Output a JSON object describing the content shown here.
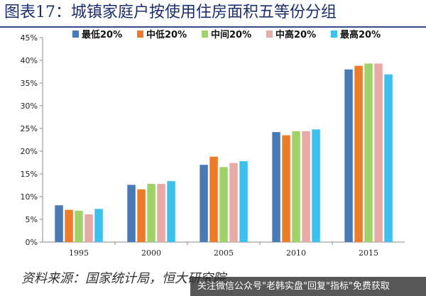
{
  "header": {
    "title": "图表17：城镇家庭户按使用住房面积五等份分组"
  },
  "footer": {
    "source": "资料来源：国家统计局，恒大研究院",
    "watermark": "关注微信公众号\"老韩实盘\"回复\"指标\"免费获取"
  },
  "chart_data": {
    "type": "bar",
    "title": "",
    "xlabel": "",
    "ylabel": "",
    "ylim": [
      0,
      45
    ],
    "yticks": [
      "0%",
      "5%",
      "10%",
      "15%",
      "20%",
      "25%",
      "30%",
      "35%",
      "40%",
      "45%"
    ],
    "grid": false,
    "legend": "top",
    "categories": [
      "1995",
      "2000",
      "2005",
      "2010",
      "2015"
    ],
    "series": [
      {
        "name": "最低20%",
        "color": "#4a7ab5",
        "values": [
          8.1,
          12.6,
          17.0,
          24.2,
          38.0
        ]
      },
      {
        "name": "中低20%",
        "color": "#ee7b2a",
        "values": [
          7.1,
          11.6,
          18.8,
          23.5,
          38.8
        ]
      },
      {
        "name": "中间20%",
        "color": "#9fd36a",
        "values": [
          6.9,
          12.8,
          16.5,
          24.4,
          39.3
        ]
      },
      {
        "name": "中高20%",
        "color": "#e7aaa7",
        "values": [
          6.1,
          12.8,
          17.4,
          24.4,
          39.3
        ]
      },
      {
        "name": "最高20%",
        "color": "#3cc0ee",
        "values": [
          7.3,
          13.4,
          17.8,
          24.8,
          36.9
        ]
      }
    ]
  }
}
